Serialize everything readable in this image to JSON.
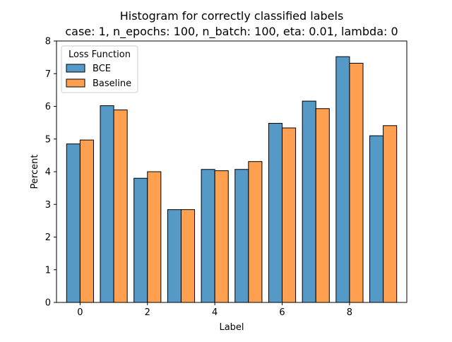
{
  "chart_data": {
    "type": "bar",
    "title": "Histogram for correctly classified labels",
    "subtitle": "case: 1, n_epochs: 100, n_batch: 100, eta: 0.01, lambda: 0",
    "xlabel": "Label",
    "ylabel": "Percent",
    "xlim": [
      -0.7,
      9.7
    ],
    "ylim": [
      0,
      8
    ],
    "xticks": [
      0,
      2,
      4,
      6,
      8
    ],
    "yticks": [
      0,
      1,
      2,
      3,
      4,
      5,
      6,
      7,
      8
    ],
    "categories": [
      0,
      1,
      2,
      3,
      4,
      5,
      6,
      7,
      8,
      9
    ],
    "legend": {
      "title": "Loss Function",
      "placement": "top-left"
    },
    "series": [
      {
        "name": "BCE",
        "color": "#5599c7",
        "values": [
          4.85,
          6.02,
          3.8,
          2.84,
          4.07,
          4.07,
          5.48,
          6.16,
          7.52,
          5.1
        ]
      },
      {
        "name": "Baseline",
        "color": "#ffa050",
        "values": [
          4.97,
          5.89,
          4.0,
          2.84,
          4.03,
          4.31,
          5.34,
          5.93,
          7.32,
          5.41
        ]
      }
    ],
    "grid": false
  }
}
